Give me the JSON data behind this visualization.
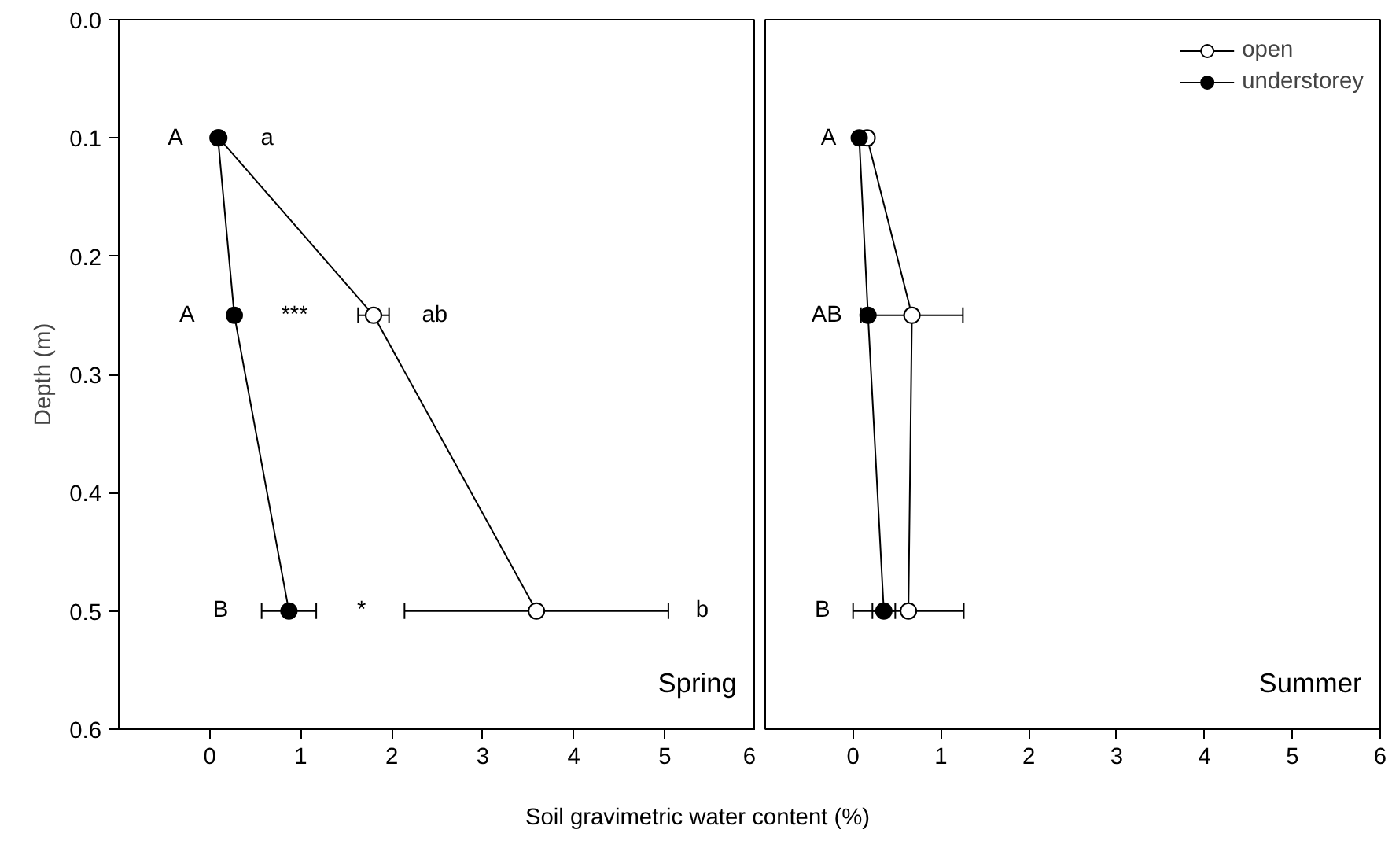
{
  "chart_data": [
    {
      "type": "line",
      "title": "Spring",
      "xlabel": "Soil gravimetric water content (%)",
      "ylabel": "Depth (m)",
      "xlim": [
        -1,
        6
      ],
      "xticks": [
        0,
        1,
        2,
        3,
        4,
        5,
        6
      ],
      "ylim": [
        0.6,
        0
      ],
      "yticks": [
        {
          "value": 0,
          "label": "0.0"
        },
        0.1,
        0.2,
        0.3,
        0.4,
        0.5,
        0.6
      ],
      "marker": "circle",
      "grid": false,
      "legend": false,
      "series": [
        {
          "color": "#ffffff",
          "x": [
            0.1,
            1.8,
            3.59
          ],
          "values": [
            0.1,
            0.25,
            0.5
          ],
          "xerrors": [
            null,
            0.17,
            1.45
          ]
        },
        {
          "color": "#000000",
          "x": [
            0.09,
            0.27,
            0.87
          ],
          "values": [
            0.1,
            0.25,
            0.5
          ],
          "xerrors": [
            null,
            null,
            0.3
          ]
        }
      ],
      "annotations": [
        "A",
        "a",
        "A",
        "***",
        "ab",
        "B",
        "*",
        "b"
      ]
    },
    {
      "type": "line",
      "title": "Summer",
      "xlim": [
        -1,
        6
      ],
      "xticks": [
        0,
        1,
        2,
        3,
        4,
        5,
        6
      ],
      "ylim": [
        0.6,
        0
      ],
      "yticks": [
        0,
        0.1,
        0.2,
        0.3,
        0.4,
        0.5,
        0.6
      ],
      "tick_labels": "x",
      "marker": "circle",
      "grid": false,
      "legend": "top right",
      "series": [
        {
          "name": "open",
          "color": "#ffffff",
          "x": [
            0.16,
            0.67,
            0.63
          ],
          "values": [
            0.1,
            0.25,
            0.5
          ],
          "xerrors": [
            0.05,
            0.58,
            0.63
          ]
        },
        {
          "name": "understorey",
          "color": "#000000",
          "x": [
            0.07,
            0.17,
            0.35
          ],
          "values": [
            0.1,
            0.25,
            0.5
          ],
          "xerrors": [
            null,
            null,
            0.13
          ]
        }
      ],
      "annotations": [
        "A",
        "AB",
        "B"
      ]
    }
  ]
}
